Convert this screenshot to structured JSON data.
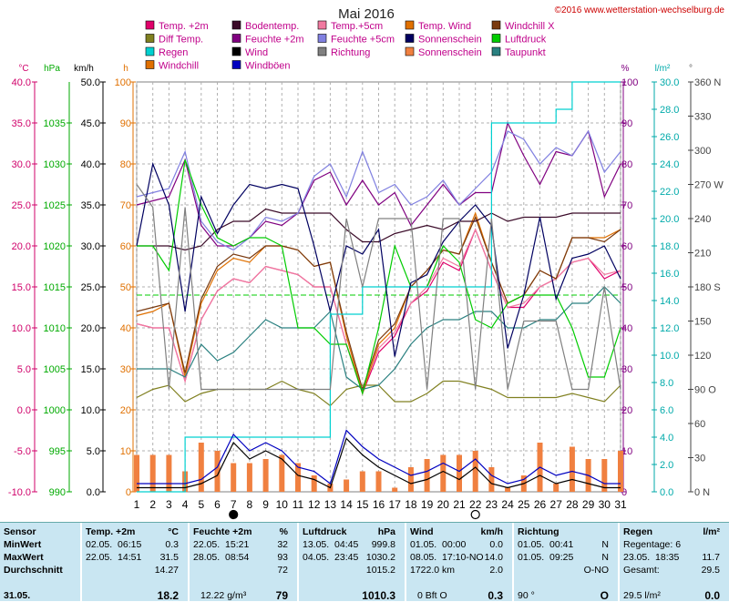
{
  "title": "Mai 2016",
  "copyright": "©2016 www.wetterstation-wechselburg.de",
  "axis_units": {
    "temp": "°C",
    "pressure": "hPa",
    "speed": "km/h",
    "hours": "h",
    "percent": "%",
    "rain": "l/m²",
    "dir": "°"
  },
  "legend": [
    {
      "label": "Temp. +2m",
      "color": "#e0006a"
    },
    {
      "label": "Bodentemp.",
      "color": "#3a0a28"
    },
    {
      "label": "Temp.+5cm",
      "color": "#f07aa0"
    },
    {
      "label": "Temp. Wind",
      "color": "#e07000"
    },
    {
      "label": "Windchill X",
      "color": "#7a3a10"
    },
    {
      "label": "Diff Temp.",
      "color": "#808020"
    },
    {
      "label": "Feuchte +2m",
      "color": "#800080"
    },
    {
      "label": "Feuchte +5cm",
      "color": "#8080e0"
    },
    {
      "label": "Sonnenschein",
      "color": "#000060"
    },
    {
      "label": "Luftdruck",
      "color": "#00cc00"
    },
    {
      "label": "Regen",
      "color": "#00d0d0"
    },
    {
      "label": "Wind",
      "color": "#000000"
    },
    {
      "label": "Richtung",
      "color": "#808080"
    },
    {
      "label": "Sonnenschein",
      "color": "#f08040"
    },
    {
      "label": "Taupunkt",
      "color": "#2a8080"
    },
    {
      "label": "Windchill",
      "color": "#e07000"
    },
    {
      "label": "Windböen",
      "color": "#0000c0"
    }
  ],
  "chart_data": {
    "type": "line",
    "title": "Mai 2016",
    "x": [
      1,
      2,
      3,
      4,
      5,
      6,
      7,
      8,
      9,
      10,
      11,
      12,
      13,
      14,
      15,
      16,
      17,
      18,
      19,
      20,
      21,
      22,
      23,
      24,
      25,
      26,
      27,
      28,
      29,
      30,
      31
    ],
    "axes": {
      "temp": {
        "unit": "°C",
        "range": [
          -10,
          40
        ],
        "ticks": [
          "40.0",
          "35.0",
          "30.0",
          "25.0",
          "20.0",
          "15.0",
          "10.0",
          "5.0",
          "0.0",
          "-5.0",
          "-10.0"
        ]
      },
      "pressure": {
        "unit": "hPa",
        "range": [
          990,
          1040
        ],
        "ticks": [
          "1035",
          "1030",
          "1025",
          "1020",
          "1015",
          "1010",
          "1005",
          "1000",
          "995",
          "990"
        ]
      },
      "speed": {
        "unit": "km/h",
        "range": [
          0,
          50
        ],
        "ticks": [
          "50.0",
          "45.0",
          "40.0",
          "35.0",
          "30.0",
          "25.0",
          "20.0",
          "15.0",
          "10.0",
          "5.0",
          "0.0"
        ]
      },
      "hours": {
        "unit": "h",
        "range": [
          0,
          100
        ],
        "ticks": [
          "100",
          "90",
          "80",
          "70",
          "60",
          "50",
          "40",
          "30",
          "20",
          "10",
          "0"
        ]
      },
      "percent": {
        "unit": "%",
        "range": [
          0,
          100
        ],
        "ticks": [
          "100",
          "90",
          "80",
          "70",
          "60",
          "50",
          "40",
          "30",
          "20",
          "10",
          "0"
        ]
      },
      "rain": {
        "unit": "l/m²",
        "range": [
          0,
          30
        ],
        "ticks": [
          "30.0",
          "28.0",
          "26.0",
          "24.0",
          "22.0",
          "20.0",
          "18.0",
          "16.0",
          "14.0",
          "12.0",
          "10.0",
          "8.0",
          "6.0",
          "4.0",
          "2.0",
          "0.0"
        ]
      },
      "dir": {
        "unit": "°",
        "range": [
          0,
          360
        ],
        "ticks": [
          "360 N",
          "330",
          "300",
          "270 W",
          "240",
          "210",
          "180 S",
          "150",
          "120",
          "90 O",
          "60",
          "30",
          "0 N"
        ]
      }
    },
    "moon_markers": [
      {
        "day": 7,
        "phase": "new"
      },
      {
        "day": 22,
        "phase": "full"
      }
    ],
    "series": [
      {
        "name": "Temp. +2m",
        "axis": "temp",
        "color": "#e0006a",
        "values": [
          10.5,
          10,
          10,
          3.5,
          11,
          14.5,
          16,
          15.5,
          17.5,
          17,
          16.5,
          15,
          15,
          8,
          2,
          7,
          9,
          13,
          14.5,
          18,
          17,
          22,
          17,
          12.5,
          12.5,
          15,
          16,
          18,
          18.5,
          16,
          17
        ]
      },
      {
        "name": "Temp.+5cm",
        "axis": "temp",
        "color": "#f07aa0",
        "values": [
          10.5,
          10,
          10,
          3.5,
          11,
          14.5,
          16,
          15.5,
          17.5,
          17,
          16.5,
          15,
          15,
          8,
          2.5,
          7.5,
          9.5,
          13,
          15,
          18.5,
          17.5,
          22,
          17,
          12.5,
          13,
          15,
          16,
          18,
          18.5,
          16.5,
          17
        ]
      },
      {
        "name": "Temp. Wind",
        "axis": "temp",
        "color": "#e07000",
        "values": [
          11.5,
          12,
          13,
          4,
          13,
          17,
          18.5,
          18,
          20,
          20,
          19.5,
          17.5,
          18,
          9,
          2,
          8,
          10,
          15,
          17,
          19.5,
          19,
          24,
          18,
          13,
          14,
          17,
          16,
          21,
          21,
          21,
          22
        ]
      },
      {
        "name": "Windchill",
        "axis": "temp",
        "color": "#7a3a10",
        "values": [
          12,
          12.5,
          13,
          4.5,
          13.5,
          17.5,
          19,
          18.5,
          20,
          20,
          19.5,
          17.5,
          18,
          9.5,
          2.5,
          8.5,
          10.5,
          15,
          17,
          19.5,
          19,
          23.5,
          18,
          13,
          14,
          17,
          16,
          21,
          21,
          20.5,
          22
        ]
      },
      {
        "name": "Bodentemp.",
        "axis": "temp",
        "color": "#3a0a28",
        "values": [
          20,
          20,
          20,
          19.5,
          20,
          22,
          23,
          23,
          24.5,
          24,
          24,
          24,
          24,
          22,
          20.5,
          20.5,
          21.5,
          22,
          22.5,
          22,
          23,
          23,
          24,
          23,
          23.5,
          23.5,
          23.5,
          24,
          24,
          24,
          24
        ]
      },
      {
        "name": "Diff Temp.",
        "axis": "temp",
        "color": "#808020",
        "values": [
          1.5,
          2.5,
          3,
          1,
          2,
          2.5,
          2.5,
          2.5,
          2.5,
          3.5,
          2.5,
          2,
          0.5,
          2.5,
          3,
          3,
          1,
          1,
          2,
          3.5,
          3.5,
          3,
          2.5,
          1.5,
          1.5,
          1.5,
          1.5,
          2,
          1.5,
          1,
          3
        ]
      },
      {
        "name": "Taupunkt",
        "axis": "temp",
        "color": "#2a8080",
        "values": [
          5,
          5,
          5,
          4,
          8,
          6,
          7,
          9,
          11,
          10,
          10,
          10,
          12,
          4,
          2.5,
          3,
          5,
          8,
          10,
          11,
          11,
          12,
          12,
          10,
          10,
          11,
          11,
          13,
          13,
          15,
          13
        ]
      },
      {
        "name": "Feuchte +2m",
        "axis": "percent",
        "color": "#800080",
        "values": [
          70,
          71,
          72,
          81,
          65,
          60,
          60,
          62,
          66,
          65,
          68,
          76,
          78,
          70,
          76,
          70,
          73,
          65,
          70,
          75,
          70,
          73,
          73,
          90,
          82,
          75,
          83,
          82,
          88,
          72,
          80
        ]
      },
      {
        "name": "Feuchte +5cm",
        "axis": "percent",
        "color": "#8080e0",
        "values": [
          72,
          73,
          74,
          83,
          66,
          61,
          59,
          62,
          67,
          66,
          68,
          77,
          80,
          72,
          83,
          73,
          75,
          70,
          72,
          76,
          70,
          74,
          78,
          88,
          86,
          80,
          84,
          82,
          88,
          78,
          83
        ]
      },
      {
        "name": "Luftdruck",
        "axis": "pressure",
        "color": "#00cc00",
        "values": [
          1020,
          1020,
          1017,
          1030.5,
          1025,
          1021,
          1020,
          1021,
          1021,
          1020,
          1010,
          1010,
          1008,
          1008,
          1002,
          1010,
          1020,
          1015,
          1015,
          1020,
          1018,
          1011,
          1010,
          1013,
          1014,
          1014,
          1014,
          1010,
          1004,
          1004,
          1010
        ]
      },
      {
        "name": "Regen",
        "axis": "rain",
        "color": "#00d0d0",
        "values": [
          0,
          0,
          0,
          4,
          4,
          4,
          4,
          4,
          4,
          4,
          4,
          4,
          13,
          13,
          15,
          15,
          15,
          15,
          15,
          15,
          15,
          15,
          27,
          27,
          27,
          27,
          28,
          30,
          30,
          30,
          30
        ]
      },
      {
        "name": "Wind",
        "axis": "speed",
        "color": "#000000",
        "values": [
          0.5,
          0.5,
          0.5,
          0.5,
          1,
          2,
          6,
          4,
          5,
          4,
          2,
          1.5,
          0.5,
          6.5,
          4.5,
          3,
          2,
          1,
          1.5,
          2.5,
          1.5,
          3,
          1,
          0.5,
          1,
          2,
          1,
          1.5,
          1,
          0.5,
          0.5
        ]
      },
      {
        "name": "Windböen",
        "axis": "speed",
        "color": "#0000c0",
        "values": [
          1,
          1,
          1,
          1,
          1.5,
          3,
          7,
          5,
          6,
          5,
          3,
          2.5,
          1,
          7.5,
          5.5,
          4,
          3,
          2,
          2.5,
          3.5,
          2.5,
          4,
          2,
          1,
          1.5,
          3,
          2,
          2.5,
          2,
          1,
          1
        ]
      },
      {
        "name": "Sonnenschein",
        "axis": "percent",
        "color": "#000060",
        "values": [
          60,
          80,
          70,
          44,
          72,
          63,
          70,
          75,
          74,
          75,
          74,
          60,
          44,
          60,
          58,
          64,
          33,
          51,
          53,
          61,
          66,
          70,
          65,
          35,
          48,
          67,
          47,
          57,
          58,
          60,
          52
        ]
      },
      {
        "name": "Richtung",
        "axis": "dir",
        "color": "#808080",
        "values": [
          270,
          250,
          90,
          250,
          90,
          90,
          90,
          90,
          90,
          90,
          90,
          90,
          90,
          240,
          180,
          240,
          240,
          240,
          90,
          240,
          240,
          90,
          240,
          90,
          150,
          150,
          150,
          90,
          90,
          180,
          90
        ]
      },
      {
        "name": "Sonnenschein",
        "axis": "hours",
        "color": "#f08040",
        "type": "bar",
        "values": [
          9,
          9,
          9,
          5,
          12,
          10,
          7,
          7,
          8,
          9,
          7,
          4,
          2,
          3,
          5,
          5,
          1,
          6,
          8,
          9,
          9,
          10,
          6,
          1,
          4,
          12,
          2,
          11,
          8,
          8,
          10
        ]
      }
    ],
    "reference_lines": [
      {
        "axis": "percent",
        "value": 48,
        "color": "#00cc00",
        "style": "dashed"
      }
    ]
  },
  "stats": {
    "date": "31.05.",
    "labels": {
      "min": "MinWert",
      "max": "MaxWert",
      "avg": "Durchschnitt",
      "sensor": "Sensor"
    },
    "temp": {
      "header": "Temp. +2m",
      "unit": "°C",
      "min_date": "02.05.",
      "min_time": "06:15",
      "min_val": "0.3",
      "max_date": "22.05.",
      "max_time": "14:51",
      "max_val": "31.5",
      "avg": "14.27",
      "current": "18.2"
    },
    "humidity": {
      "header": "Feuchte +2m",
      "unit": "%",
      "min_date": "22.05.",
      "min_time": "15:21",
      "min_val": "32",
      "max_date": "28.05.",
      "max_time": "08:54",
      "max_val": "93",
      "avg": "72",
      "abs": "12.22 g/m³",
      "current": "79"
    },
    "pressure": {
      "header": "Luftdruck",
      "unit": "hPa",
      "min_date": "13.05.",
      "min_time": "04:45",
      "min_val": "999.8",
      "max_date": "04.05.",
      "max_time": "23:45",
      "max_val": "1030.2",
      "avg": "1015.2",
      "current": "1010.3"
    },
    "wind": {
      "header": "Wind",
      "unit": "km/h",
      "min_date": "01.05.",
      "min_time": "00:00",
      "min_val": "0.0",
      "max_date": "08.05.",
      "max_time": "17:10-NO",
      "max_val": "14.0",
      "dist": "1722.0 km",
      "avg": "2.0",
      "bft": "0 Bft O",
      "current": "0.3"
    },
    "direction": {
      "header": "Richtung",
      "min_date": "01.05.",
      "min_time": "00:41",
      "min_val": "N",
      "max_date": "01.05.",
      "max_time": "09:25",
      "max_val": "N",
      "avg": "O-NO",
      "current_deg": "90 °",
      "current": "O"
    },
    "rain": {
      "header": "Regen",
      "unit": "l/m²",
      "days_label": "Regentage: 6",
      "max_date": "23.05.",
      "max_time": "18:35",
      "max_val": "11.7",
      "total_label": "Gesamt:",
      "total": "29.5",
      "current_label": "29.5 l/m²",
      "current": "0.0"
    }
  }
}
